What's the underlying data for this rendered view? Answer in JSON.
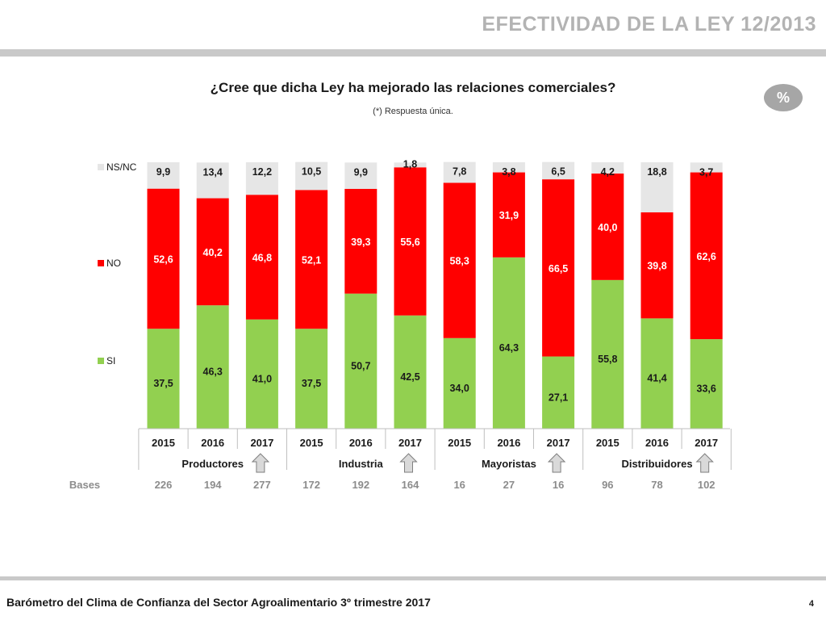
{
  "header": {
    "title": "EFECTIVIDAD DE LA LEY 12/2013"
  },
  "chart_data": {
    "type": "bar",
    "stacked": true,
    "title": "¿Cree que dicha Ley ha mejorado las relaciones comerciales?",
    "subtitle": "(*) Respuesta única.",
    "unit_badge": "%",
    "categories": [
      "2015",
      "2016",
      "2017",
      "2015",
      "2016",
      "2017",
      "2015",
      "2016",
      "2017",
      "2015",
      "2016",
      "2017"
    ],
    "groups": [
      {
        "name": "Productores",
        "start": 0,
        "end": 2
      },
      {
        "name": "Industria",
        "start": 3,
        "end": 5
      },
      {
        "name": "Mayoristas",
        "start": 6,
        "end": 8
      },
      {
        "name": "Distribuidores",
        "start": 9,
        "end": 11
      }
    ],
    "series": [
      {
        "name": "SI",
        "color": "#92d050",
        "values": [
          37.5,
          46.3,
          41.0,
          37.5,
          50.7,
          42.5,
          34.0,
          64.3,
          27.1,
          55.8,
          41.4,
          33.6
        ],
        "labels": [
          "37,5",
          "46,3",
          "41,0",
          "37,5",
          "50,7",
          "42,5",
          "34,0",
          "64,3",
          "27,1",
          "55,8",
          "41,4",
          "33,6"
        ],
        "label_color": "#1a1a1a"
      },
      {
        "name": "NO",
        "color": "#ff0000",
        "values": [
          52.6,
          40.2,
          46.8,
          52.1,
          39.3,
          55.6,
          58.3,
          31.9,
          66.5,
          40.0,
          39.8,
          62.6
        ],
        "labels": [
          "52,6",
          "40,2",
          "46,8",
          "52,1",
          "39,3",
          "55,6",
          "58,3",
          "31,9",
          "66,5",
          "40,0",
          "39,8",
          "62,6"
        ],
        "label_color": "#ffffff"
      },
      {
        "name": "NS/NC",
        "color": "#e6e6e6",
        "values": [
          9.9,
          13.4,
          12.2,
          10.5,
          9.9,
          1.8,
          7.8,
          3.8,
          6.5,
          4.2,
          18.8,
          3.7
        ],
        "labels": [
          "9,9",
          "13,4",
          "12,2",
          "10,5",
          "9,9",
          "1,8",
          "7,8",
          "3,8",
          "6,5",
          "4,2",
          "18,8",
          "3,7"
        ],
        "label_color": "#1a1a1a"
      }
    ],
    "legend": [
      "NS/NC",
      "NO",
      "SI"
    ],
    "legend_position": "left",
    "ylim": [
      0,
      100
    ],
    "bases_label": "Bases",
    "bases": [
      "226",
      "194",
      "277",
      "172",
      "192",
      "164",
      "16",
      "27",
      "16",
      "96",
      "78",
      "102"
    ],
    "trend_arrow_groups": [
      0,
      1,
      2,
      3
    ]
  },
  "footer": {
    "text": "Barómetro del Clima de Confianza del Sector Agroalimentario 3º trimestre 2017",
    "page": "4"
  }
}
